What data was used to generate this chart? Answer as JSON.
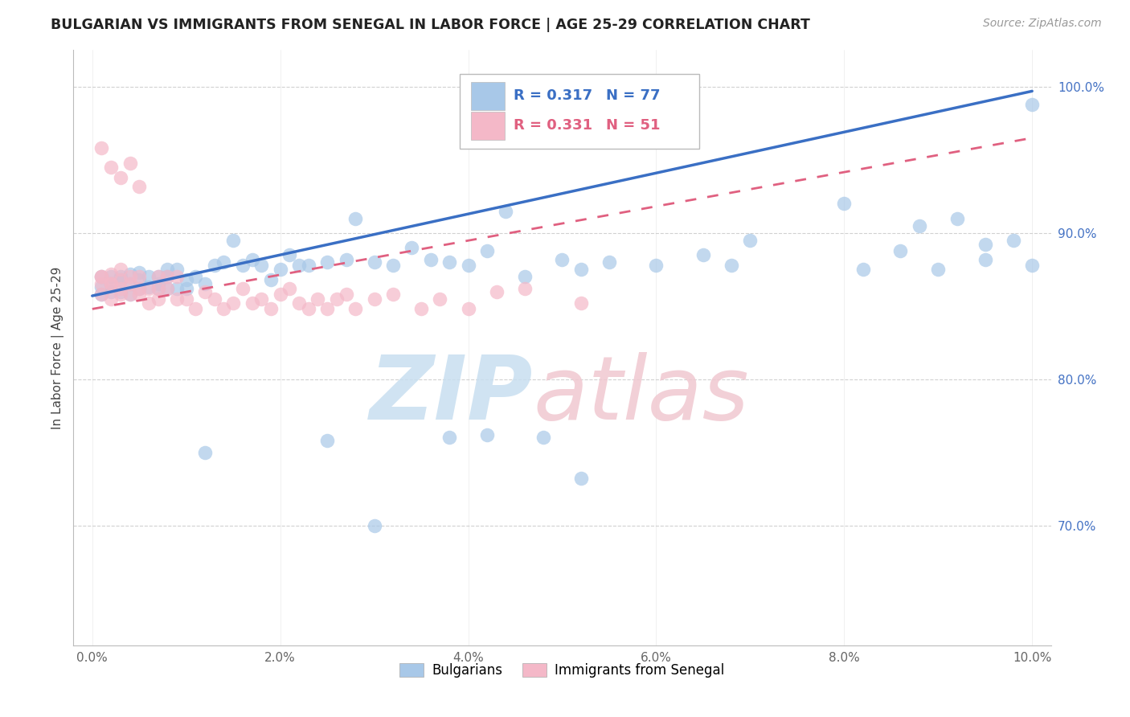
{
  "title": "BULGARIAN VS IMMIGRANTS FROM SENEGAL IN LABOR FORCE | AGE 25-29 CORRELATION CHART",
  "source": "Source: ZipAtlas.com",
  "ylabel": "In Labor Force | Age 25-29",
  "xlim": [
    -0.002,
    0.102
  ],
  "ylim": [
    0.618,
    1.025
  ],
  "yticks": [
    0.7,
    0.8,
    0.9,
    1.0
  ],
  "ytick_labels": [
    "70.0%",
    "80.0%",
    "90.0%",
    "100.0%"
  ],
  "xticks": [
    0.0,
    0.02,
    0.04,
    0.06,
    0.08,
    0.1
  ],
  "xtick_labels": [
    "0.0%",
    "2.0%",
    "4.0%",
    "6.0%",
    "8.0%",
    "10.0%"
  ],
  "legend_blue_r": "R = 0.317",
  "legend_blue_n": "N = 77",
  "legend_pink_r": "R = 0.331",
  "legend_pink_n": "N = 51",
  "blue_scatter_color": "#a8c8e8",
  "pink_scatter_color": "#f4b8c8",
  "blue_line_color": "#3a6fc4",
  "pink_line_color": "#e06080",
  "title_color": "#222222",
  "tick_label_color_y": "#4472c4",
  "tick_label_color_x": "#666666",
  "grid_color": "#cccccc",
  "blue_line_x0": 0.0,
  "blue_line_x1": 0.1,
  "blue_line_y0": 0.857,
  "blue_line_y1": 0.997,
  "pink_line_x0": 0.0,
  "pink_line_x1": 0.1,
  "pink_line_y0": 0.848,
  "pink_line_y1": 0.965,
  "watermark_zip_color": "#c8dff0",
  "watermark_atlas_color": "#f0c8d0",
  "blue_pts_x": [
    0.001,
    0.001,
    0.001,
    0.002,
    0.002,
    0.002,
    0.003,
    0.003,
    0.003,
    0.004,
    0.004,
    0.004,
    0.005,
    0.005,
    0.005,
    0.006,
    0.006,
    0.007,
    0.007,
    0.007,
    0.008,
    0.008,
    0.008,
    0.009,
    0.009,
    0.01,
    0.01,
    0.011,
    0.012,
    0.013,
    0.014,
    0.015,
    0.016,
    0.017,
    0.018,
    0.019,
    0.02,
    0.021,
    0.022,
    0.023,
    0.025,
    0.027,
    0.028,
    0.03,
    0.032,
    0.034,
    0.036,
    0.038,
    0.04,
    0.042,
    0.044,
    0.046,
    0.05,
    0.055,
    0.06,
    0.065,
    0.07,
    0.08,
    0.082,
    0.088,
    0.09,
    0.092,
    0.095,
    0.098,
    0.1,
    0.1,
    0.012,
    0.025,
    0.03,
    0.038,
    0.042,
    0.052,
    0.048,
    0.095,
    0.086,
    0.068,
    0.052
  ],
  "blue_pts_y": [
    0.863,
    0.858,
    0.87,
    0.865,
    0.86,
    0.87,
    0.87,
    0.86,
    0.868,
    0.865,
    0.858,
    0.872,
    0.868,
    0.862,
    0.873,
    0.863,
    0.87,
    0.865,
    0.87,
    0.862,
    0.87,
    0.862,
    0.875,
    0.862,
    0.875,
    0.868,
    0.862,
    0.87,
    0.865,
    0.878,
    0.88,
    0.895,
    0.878,
    0.882,
    0.878,
    0.868,
    0.875,
    0.885,
    0.878,
    0.878,
    0.88,
    0.882,
    0.91,
    0.88,
    0.878,
    0.89,
    0.882,
    0.88,
    0.878,
    0.888,
    0.915,
    0.87,
    0.882,
    0.88,
    0.878,
    0.885,
    0.895,
    0.92,
    0.875,
    0.905,
    0.875,
    0.91,
    0.882,
    0.895,
    0.878,
    0.988,
    0.75,
    0.758,
    0.7,
    0.76,
    0.762,
    0.732,
    0.76,
    0.892,
    0.888,
    0.878,
    0.875
  ],
  "pink_pts_x": [
    0.001,
    0.001,
    0.001,
    0.002,
    0.002,
    0.002,
    0.003,
    0.003,
    0.003,
    0.004,
    0.004,
    0.004,
    0.005,
    0.005,
    0.005,
    0.006,
    0.006,
    0.007,
    0.007,
    0.007,
    0.008,
    0.008,
    0.009,
    0.009,
    0.01,
    0.011,
    0.012,
    0.013,
    0.014,
    0.015,
    0.016,
    0.017,
    0.018,
    0.019,
    0.02,
    0.021,
    0.022,
    0.023,
    0.024,
    0.025,
    0.026,
    0.027,
    0.028,
    0.03,
    0.032,
    0.035,
    0.037,
    0.04,
    0.043,
    0.046,
    0.052
  ],
  "pink_pts_y": [
    0.858,
    0.865,
    0.87,
    0.855,
    0.865,
    0.872,
    0.858,
    0.868,
    0.875,
    0.858,
    0.865,
    0.87,
    0.858,
    0.862,
    0.87,
    0.852,
    0.862,
    0.855,
    0.862,
    0.87,
    0.862,
    0.87,
    0.855,
    0.87,
    0.855,
    0.848,
    0.86,
    0.855,
    0.848,
    0.852,
    0.862,
    0.852,
    0.855,
    0.848,
    0.858,
    0.862,
    0.852,
    0.848,
    0.855,
    0.848,
    0.855,
    0.858,
    0.848,
    0.855,
    0.858,
    0.848,
    0.855,
    0.848,
    0.86,
    0.862,
    0.852
  ],
  "pink_extra_x": [
    0.001,
    0.002,
    0.003,
    0.004,
    0.005,
    0.001,
    0.002,
    0.003
  ],
  "pink_extra_y": [
    0.958,
    0.945,
    0.938,
    0.948,
    0.932,
    0.87,
    0.865,
    0.862
  ]
}
